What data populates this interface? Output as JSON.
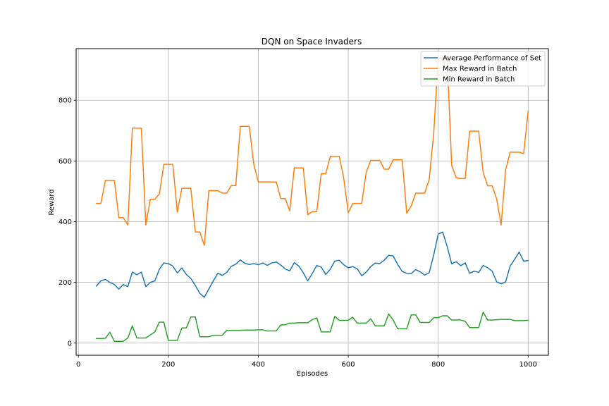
{
  "chart_data": {
    "type": "line",
    "title": "DQN on Space Invaders",
    "xlabel": "Episodes",
    "ylabel": "Reward",
    "xlim": [
      -5,
      1045
    ],
    "ylim": [
      -40,
      970
    ],
    "xticks": [
      0,
      200,
      400,
      600,
      800,
      1000
    ],
    "yticks": [
      0,
      200,
      400,
      600,
      800
    ],
    "grid": true,
    "legend_position": "top-right",
    "x": [
      40,
      50,
      60,
      70,
      80,
      90,
      100,
      110,
      120,
      130,
      140,
      150,
      160,
      170,
      180,
      190,
      200,
      210,
      220,
      230,
      240,
      250,
      260,
      270,
      280,
      290,
      300,
      310,
      320,
      330,
      340,
      350,
      360,
      370,
      380,
      390,
      400,
      410,
      420,
      430,
      440,
      450,
      460,
      470,
      480,
      490,
      500,
      510,
      520,
      530,
      540,
      550,
      560,
      570,
      580,
      590,
      600,
      610,
      620,
      630,
      640,
      650,
      660,
      670,
      680,
      690,
      700,
      710,
      720,
      730,
      740,
      750,
      760,
      770,
      780,
      790,
      800,
      810,
      820,
      830,
      840,
      850,
      860,
      870,
      880,
      890,
      900,
      910,
      920,
      930,
      940,
      950,
      960,
      970,
      980,
      990,
      1000
    ],
    "series": [
      {
        "name": "Average Performance of Set",
        "color": "#1f77b4",
        "values": [
          188,
          205,
          210,
          200,
          193,
          178,
          193,
          186,
          234,
          225,
          234,
          186,
          200,
          205,
          243,
          264,
          262,
          254,
          231,
          248,
          226,
          213,
          190,
          164,
          151,
          178,
          205,
          230,
          223,
          233,
          253,
          260,
          274,
          263,
          259,
          262,
          258,
          264,
          256,
          264,
          267,
          257,
          244,
          238,
          265,
          254,
          232,
          205,
          229,
          256,
          250,
          226,
          243,
          270,
          273,
          258,
          248,
          252,
          245,
          222,
          234,
          252,
          264,
          262,
          273,
          289,
          287,
          259,
          236,
          230,
          229,
          242,
          235,
          224,
          232,
          290,
          359,
          366,
          318,
          261,
          268,
          255,
          264,
          230,
          237,
          233,
          256,
          248,
          237,
          202,
          195,
          202,
          254,
          276,
          300,
          270,
          272
        ]
      },
      {
        "name": "Max Reward in Batch",
        "color": "#ff7f0e",
        "values": [
          460,
          460,
          536,
          536,
          536,
          413,
          413,
          389,
          708,
          708,
          708,
          389,
          474,
          474,
          491,
          589,
          589,
          589,
          431,
          510,
          510,
          510,
          366,
          366,
          322,
          502,
          502,
          502,
          494,
          494,
          519,
          519,
          714,
          714,
          714,
          589,
          531,
          531,
          531,
          531,
          531,
          476,
          476,
          436,
          577,
          577,
          577,
          423,
          433,
          433,
          558,
          558,
          615,
          615,
          615,
          543,
          429,
          460,
          460,
          460,
          563,
          602,
          602,
          602,
          573,
          573,
          604,
          604,
          604,
          428,
          452,
          494,
          494,
          494,
          539,
          690,
          940,
          940,
          940,
          585,
          545,
          542,
          542,
          698,
          698,
          698,
          562,
          518,
          518,
          475,
          389,
          571,
          629,
          629,
          629,
          624,
          764
        ]
      },
      {
        "name": "Min Reward in Batch",
        "color": "#2ca02c",
        "values": [
          15,
          15,
          16,
          36,
          6,
          6,
          6,
          17,
          57,
          17,
          17,
          17,
          27,
          37,
          69,
          69,
          9,
          9,
          9,
          50,
          50,
          86,
          86,
          21,
          21,
          21,
          26,
          26,
          26,
          42,
          42,
          42,
          42,
          43,
          43,
          43,
          44,
          44,
          40,
          40,
          40,
          60,
          60,
          66,
          66,
          67,
          67,
          67,
          77,
          83,
          37,
          37,
          37,
          88,
          75,
          75,
          75,
          85,
          66,
          66,
          66,
          80,
          57,
          57,
          57,
          96,
          76,
          47,
          47,
          47,
          93,
          93,
          68,
          68,
          68,
          84,
          84,
          90,
          90,
          76,
          76,
          76,
          72,
          51,
          51,
          51,
          102,
          76,
          76,
          77,
          78,
          78,
          78,
          74,
          74,
          74,
          75
        ]
      }
    ]
  }
}
